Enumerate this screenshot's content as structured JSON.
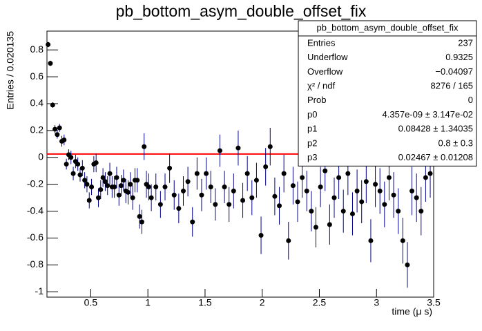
{
  "chart_data": {
    "type": "errorbar",
    "title": "pb_bottom_asym_double_offset_fix",
    "x_label": "time (μ s)",
    "y_label": "Entries / 0.020135",
    "xlim": [
      0.117,
      3.5
    ],
    "ylim": [
      -1.04,
      0.94
    ],
    "xticks": [
      0.5,
      1,
      1.5,
      2,
      2.5,
      3,
      3.5
    ],
    "yticks": [
      -1,
      -0.8,
      -0.6,
      -0.4,
      -0.2,
      0,
      0.2,
      0.4,
      0.6,
      0.8
    ],
    "marker_color": "#000000",
    "error_color": "#00008b",
    "x": [
      0.127,
      0.147,
      0.167,
      0.187,
      0.207,
      0.227,
      0.247,
      0.267,
      0.287,
      0.307,
      0.327,
      0.347,
      0.367,
      0.387,
      0.407,
      0.427,
      0.447,
      0.467,
      0.487,
      0.507,
      0.527,
      0.547,
      0.567,
      0.587,
      0.607,
      0.627,
      0.647,
      0.667,
      0.687,
      0.707,
      0.727,
      0.747,
      0.767,
      0.787,
      0.807,
      0.827,
      0.847,
      0.867,
      0.887,
      0.907,
      0.927,
      0.947,
      0.967,
      0.987,
      1.007,
      1.03,
      1.07,
      1.11,
      1.15,
      1.19,
      1.23,
      1.27,
      1.31,
      1.35,
      1.39,
      1.43,
      1.47,
      1.51,
      1.55,
      1.59,
      1.63,
      1.67,
      1.71,
      1.75,
      1.79,
      1.83,
      1.87,
      1.91,
      1.95,
      1.99,
      2.03,
      2.07,
      2.11,
      2.15,
      2.19,
      2.23,
      2.27,
      2.31,
      2.35,
      2.39,
      2.43,
      2.47,
      2.51,
      2.55,
      2.59,
      2.63,
      2.67,
      2.71,
      2.75,
      2.79,
      2.83,
      2.87,
      2.91,
      2.95,
      2.99,
      3.03,
      3.07,
      3.11,
      3.15,
      3.19,
      3.23,
      3.27,
      3.31,
      3.35,
      3.39,
      3.43,
      3.47
    ],
    "values": [
      0.84,
      0.7,
      0.39,
      0.21,
      0.17,
      0.22,
      0.12,
      0.13,
      -0.05,
      0.02,
      0.0,
      -0.12,
      -0.03,
      -0.05,
      -0.13,
      -0.08,
      -0.17,
      -0.2,
      -0.32,
      -0.22,
      -0.05,
      -0.04,
      -0.3,
      -0.24,
      -0.15,
      -0.18,
      -0.21,
      -0.12,
      -0.22,
      -0.22,
      -0.15,
      -0.28,
      -0.21,
      -0.17,
      -0.25,
      -0.26,
      -0.2,
      -0.3,
      -0.17,
      -0.17,
      -0.44,
      -0.48,
      0.08,
      -0.2,
      -0.22,
      -0.3,
      -0.22,
      -0.35,
      -0.22,
      -0.08,
      -0.28,
      -0.38,
      -0.25,
      -0.18,
      -0.48,
      -0.12,
      -0.28,
      -0.12,
      -0.22,
      -0.35,
      0.05,
      -0.22,
      -0.35,
      -0.25,
      0.07,
      -0.32,
      -0.12,
      -0.3,
      -0.17,
      -0.58,
      -0.07,
      0.08,
      -0.29,
      -0.36,
      -0.12,
      -0.62,
      -0.21,
      -0.33,
      -0.15,
      -0.25,
      -0.4,
      -0.52,
      -0.22,
      -0.1,
      -0.5,
      -0.3,
      -0.15,
      -0.4,
      -0.12,
      -0.42,
      -0.25,
      -0.33,
      -0.18,
      -0.62,
      -0.2,
      -0.25,
      -0.35,
      -0.15,
      -0.28,
      -0.4,
      -0.62,
      -0.8,
      -0.25,
      -0.3,
      -0.4,
      -0.15,
      -0.12
    ],
    "errors": [
      0.02,
      0.02,
      0.02,
      0.03,
      0.03,
      0.03,
      0.04,
      0.04,
      0.04,
      0.04,
      0.05,
      0.05,
      0.05,
      0.05,
      0.05,
      0.06,
      0.06,
      0.06,
      0.06,
      0.06,
      0.06,
      0.07,
      0.07,
      0.07,
      0.07,
      0.07,
      0.07,
      0.08,
      0.08,
      0.08,
      0.08,
      0.08,
      0.08,
      0.08,
      0.09,
      0.09,
      0.09,
      0.09,
      0.09,
      0.09,
      0.09,
      0.09,
      0.1,
      0.1,
      0.1,
      0.1,
      0.1,
      0.1,
      0.1,
      0.11,
      0.11,
      0.11,
      0.11,
      0.11,
      0.11,
      0.12,
      0.12,
      0.12,
      0.12,
      0.12,
      0.12,
      0.12,
      0.13,
      0.13,
      0.13,
      0.13,
      0.13,
      0.13,
      0.13,
      0.14,
      0.14,
      0.14,
      0.14,
      0.14,
      0.14,
      0.14,
      0.14,
      0.15,
      0.15,
      0.15,
      0.15,
      0.15,
      0.15,
      0.15,
      0.15,
      0.15,
      0.16,
      0.16,
      0.16,
      0.16,
      0.16,
      0.16,
      0.16,
      0.16,
      0.17,
      0.17,
      0.17,
      0.17,
      0.17,
      0.17,
      0.17,
      0.17,
      0.18,
      0.18,
      0.18,
      0.18,
      0.18
    ],
    "fit": {
      "color": "#ff0000",
      "x": [
        0.117,
        3.5
      ],
      "values": [
        0.025,
        0.025
      ]
    },
    "stats": {
      "title": "pb_bottom_asym_double_offset_fix",
      "rows": [
        [
          "Entries",
          "237"
        ],
        [
          "Underflow",
          "0.9325"
        ],
        [
          "Overflow",
          "−0.04097"
        ],
        [
          "χ² / ndf",
          "8276 / 165"
        ],
        [
          "Prob",
          "0"
        ],
        [
          "p0",
          "4.357e-09 ± 3.147e-02"
        ],
        [
          "p1",
          "0.08428 ± 1.34035"
        ],
        [
          "p2",
          "0.8 ± 0.3"
        ],
        [
          "p3",
          "0.02467 ± 0.01208"
        ]
      ]
    }
  }
}
